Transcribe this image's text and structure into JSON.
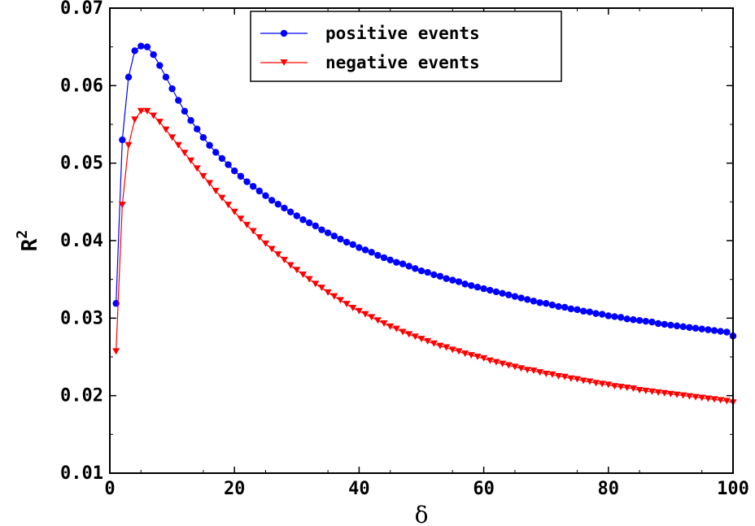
{
  "chart_data": {
    "type": "line",
    "xlabel": "δ",
    "ylabel": "R",
    "ylabel_superscript": "2",
    "xlim": [
      0,
      100
    ],
    "ylim": [
      0.01,
      0.07
    ],
    "x_ticks": [
      "0",
      "20",
      "40",
      "60",
      "80",
      "100"
    ],
    "y_ticks": [
      "0.01",
      "0.02",
      "0.03",
      "0.04",
      "0.05",
      "0.06",
      "0.07"
    ],
    "legend_position": "top-center",
    "grid": false,
    "x": [
      1,
      2,
      3,
      4,
      5,
      6,
      7,
      8,
      9,
      10,
      11,
      12,
      13,
      14,
      15,
      16,
      17,
      18,
      19,
      20,
      21,
      22,
      23,
      24,
      25,
      26,
      27,
      28,
      29,
      30,
      31,
      32,
      33,
      34,
      35,
      36,
      37,
      38,
      39,
      40,
      41,
      42,
      43,
      44,
      45,
      46,
      47,
      48,
      49,
      50,
      51,
      52,
      53,
      54,
      55,
      56,
      57,
      58,
      59,
      60,
      61,
      62,
      63,
      64,
      65,
      66,
      67,
      68,
      69,
      70,
      71,
      72,
      73,
      74,
      75,
      76,
      77,
      78,
      79,
      80,
      81,
      82,
      83,
      84,
      85,
      86,
      87,
      88,
      89,
      90,
      91,
      92,
      93,
      94,
      95,
      96,
      97,
      98,
      99,
      100
    ],
    "series": [
      {
        "name": "positive events",
        "color": "#0000ff",
        "marker": "circle",
        "values": [
          0.0319,
          0.053,
          0.0611,
          0.0645,
          0.0651,
          0.065,
          0.064,
          0.0626,
          0.0611,
          0.0596,
          0.0581,
          0.0567,
          0.0555,
          0.0544,
          0.0533,
          0.0523,
          0.0514,
          0.0506,
          0.0498,
          0.049,
          0.0483,
          0.0476,
          0.047,
          0.0464,
          0.0458,
          0.0452,
          0.0447,
          0.0442,
          0.0437,
          0.0432,
          0.0427,
          0.0423,
          0.0419,
          0.0414,
          0.041,
          0.0406,
          0.0402,
          0.0398,
          0.0395,
          0.0391,
          0.0388,
          0.0385,
          0.0381,
          0.0378,
          0.0375,
          0.0372,
          0.037,
          0.0367,
          0.0364,
          0.0361,
          0.0359,
          0.0356,
          0.0354,
          0.0351,
          0.0349,
          0.0347,
          0.0344,
          0.0342,
          0.034,
          0.0338,
          0.0336,
          0.0334,
          0.0332,
          0.033,
          0.0328,
          0.0326,
          0.0324,
          0.0322,
          0.032,
          0.0319,
          0.0317,
          0.0315,
          0.0314,
          0.0312,
          0.0311,
          0.0309,
          0.0308,
          0.0306,
          0.0305,
          0.0303,
          0.0302,
          0.0301,
          0.0299,
          0.0298,
          0.0297,
          0.0296,
          0.0295,
          0.0293,
          0.0292,
          0.0291,
          0.029,
          0.0289,
          0.0288,
          0.0287,
          0.0286,
          0.0285,
          0.0284,
          0.0283,
          0.0282,
          0.0277
        ]
      },
      {
        "name": "negative events",
        "color": "#ff0000",
        "marker": "triangle-down",
        "values": [
          0.0257,
          0.0446,
          0.0523,
          0.0556,
          0.0567,
          0.0567,
          0.0561,
          0.0553,
          0.0543,
          0.0533,
          0.0523,
          0.0513,
          0.0503,
          0.0493,
          0.0483,
          0.0474,
          0.0464,
          0.0455,
          0.0446,
          0.0437,
          0.0428,
          0.042,
          0.0412,
          0.0404,
          0.0396,
          0.0389,
          0.0382,
          0.0375,
          0.0368,
          0.0362,
          0.0356,
          0.035,
          0.0344,
          0.0339,
          0.0333,
          0.0328,
          0.0323,
          0.0318,
          0.0313,
          0.0309,
          0.0305,
          0.0301,
          0.0297,
          0.0293,
          0.0289,
          0.0286,
          0.0282,
          0.0279,
          0.0276,
          0.0273,
          0.027,
          0.0267,
          0.0264,
          0.0262,
          0.0259,
          0.0257,
          0.0254,
          0.0252,
          0.025,
          0.0248,
          0.0245,
          0.0243,
          0.0241,
          0.0239,
          0.0237,
          0.0235,
          0.0233,
          0.0232,
          0.023,
          0.0228,
          0.0227,
          0.0225,
          0.0224,
          0.0222,
          0.0221,
          0.0219,
          0.0218,
          0.0216,
          0.0215,
          0.0214,
          0.0212,
          0.0211,
          0.021,
          0.0209,
          0.0207,
          0.0206,
          0.0205,
          0.0204,
          0.0203,
          0.0202,
          0.0201,
          0.02,
          0.0199,
          0.0198,
          0.0197,
          0.0196,
          0.0195,
          0.0194,
          0.0193,
          0.0191
        ]
      }
    ]
  }
}
